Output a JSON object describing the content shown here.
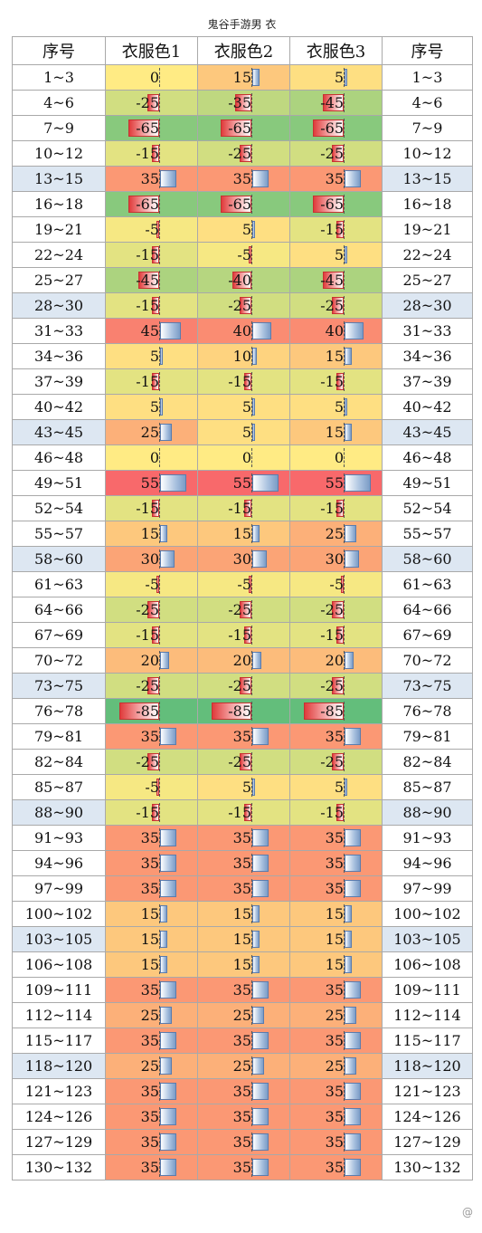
{
  "title": "鬼谷手游男 衣",
  "headers": [
    "序号",
    "衣服色1",
    "衣服色2",
    "衣服色3",
    "序号"
  ],
  "watermark": "@",
  "rows": [
    {
      "seq": "1~3",
      "v": [
        0,
        15,
        5
      ],
      "hl": false
    },
    {
      "seq": "4~6",
      "v": [
        -25,
        -35,
        -45
      ],
      "hl": false
    },
    {
      "seq": "7~9",
      "v": [
        -65,
        -65,
        -65
      ],
      "hl": false
    },
    {
      "seq": "10~12",
      "v": [
        -15,
        -25,
        -25
      ],
      "hl": false
    },
    {
      "seq": "13~15",
      "v": [
        35,
        35,
        35
      ],
      "hl": true
    },
    {
      "seq": "16~18",
      "v": [
        -65,
        -65,
        -65
      ],
      "hl": false
    },
    {
      "seq": "19~21",
      "v": [
        -5,
        5,
        -15
      ],
      "hl": false
    },
    {
      "seq": "22~24",
      "v": [
        -15,
        -5,
        5
      ],
      "hl": false
    },
    {
      "seq": "25~27",
      "v": [
        -45,
        -40,
        -45
      ],
      "hl": false
    },
    {
      "seq": "28~30",
      "v": [
        -15,
        -25,
        -25
      ],
      "hl": true
    },
    {
      "seq": "31~33",
      "v": [
        45,
        40,
        40
      ],
      "hl": false
    },
    {
      "seq": "34~36",
      "v": [
        5,
        10,
        15
      ],
      "hl": false
    },
    {
      "seq": "37~39",
      "v": [
        -15,
        -15,
        -15
      ],
      "hl": false
    },
    {
      "seq": "40~42",
      "v": [
        5,
        5,
        5
      ],
      "hl": false
    },
    {
      "seq": "43~45",
      "v": [
        25,
        5,
        15
      ],
      "hl": true
    },
    {
      "seq": "46~48",
      "v": [
        0,
        0,
        0
      ],
      "hl": false
    },
    {
      "seq": "49~51",
      "v": [
        55,
        55,
        55
      ],
      "hl": false
    },
    {
      "seq": "52~54",
      "v": [
        -15,
        -15,
        -15
      ],
      "hl": false
    },
    {
      "seq": "55~57",
      "v": [
        15,
        15,
        25
      ],
      "hl": false
    },
    {
      "seq": "58~60",
      "v": [
        30,
        30,
        30
      ],
      "hl": true
    },
    {
      "seq": "61~63",
      "v": [
        -5,
        -5,
        -5
      ],
      "hl": false
    },
    {
      "seq": "64~66",
      "v": [
        -25,
        -25,
        -25
      ],
      "hl": false
    },
    {
      "seq": "67~69",
      "v": [
        -15,
        -15,
        -15
      ],
      "hl": false
    },
    {
      "seq": "70~72",
      "v": [
        20,
        20,
        20
      ],
      "hl": false
    },
    {
      "seq": "73~75",
      "v": [
        -25,
        -25,
        -25
      ],
      "hl": true
    },
    {
      "seq": "76~78",
      "v": [
        -85,
        -85,
        -85
      ],
      "hl": false
    },
    {
      "seq": "79~81",
      "v": [
        35,
        35,
        35
      ],
      "hl": false
    },
    {
      "seq": "82~84",
      "v": [
        -25,
        -25,
        -25
      ],
      "hl": false
    },
    {
      "seq": "85~87",
      "v": [
        -5,
        5,
        5
      ],
      "hl": false
    },
    {
      "seq": "88~90",
      "v": [
        -15,
        -15,
        -15
      ],
      "hl": true
    },
    {
      "seq": "91~93",
      "v": [
        35,
        35,
        35
      ],
      "hl": false
    },
    {
      "seq": "94~96",
      "v": [
        35,
        35,
        35
      ],
      "hl": false
    },
    {
      "seq": "97~99",
      "v": [
        35,
        35,
        35
      ],
      "hl": false
    },
    {
      "seq": "100~102",
      "v": [
        15,
        15,
        15
      ],
      "hl": false
    },
    {
      "seq": "103~105",
      "v": [
        15,
        15,
        15
      ],
      "hl": true
    },
    {
      "seq": "106~108",
      "v": [
        15,
        15,
        15
      ],
      "hl": false
    },
    {
      "seq": "109~111",
      "v": [
        35,
        35,
        35
      ],
      "hl": false
    },
    {
      "seq": "112~114",
      "v": [
        25,
        25,
        25
      ],
      "hl": false
    },
    {
      "seq": "115~117",
      "v": [
        35,
        35,
        35
      ],
      "hl": false
    },
    {
      "seq": "118~120",
      "v": [
        25,
        25,
        25
      ],
      "hl": true
    },
    {
      "seq": "121~123",
      "v": [
        35,
        35,
        35
      ],
      "hl": false
    },
    {
      "seq": "124~126",
      "v": [
        35,
        35,
        35
      ],
      "hl": false
    },
    {
      "seq": "127~129",
      "v": [
        35,
        35,
        35
      ],
      "hl": false
    },
    {
      "seq": "130~132",
      "v": [
        35,
        35,
        35
      ],
      "hl": false
    }
  ],
  "colors": {
    "highlight_seq": "#dde7f2",
    "bar_positive": "#7b9cc6",
    "bar_negative": "#e03c3c",
    "scale_low": "#63be7b",
    "scale_mid": "#ffeb84",
    "scale_high": "#f8696b"
  }
}
